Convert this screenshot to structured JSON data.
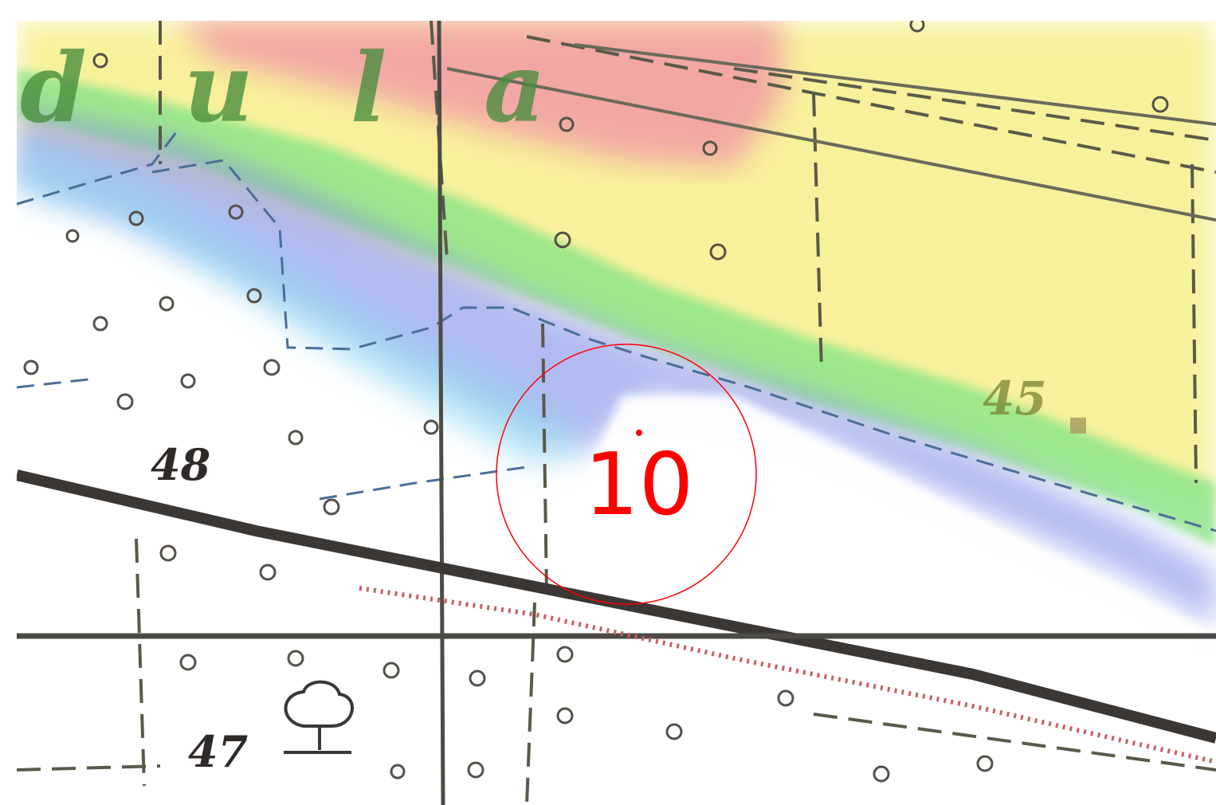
{
  "map": {
    "background_color": "#ffffff",
    "overlay_colors": {
      "red_zone": "#f2a0a5",
      "yellow_zone": "#f7ef8a",
      "green_zone": "#8fe68a",
      "blue_zone": "#7f8fe8",
      "cyan_zone": "#8ad6f0"
    },
    "labels": {
      "letters": "d u l a",
      "elevation_45": "45",
      "elevation_48": "48",
      "elevation_47": "47"
    },
    "marker": {
      "number": "10",
      "color": "#ff0000",
      "icon": "circle-marker-icon"
    },
    "symbols": [
      "tree-icon",
      "railway-line",
      "boundary-dashed-line"
    ]
  }
}
